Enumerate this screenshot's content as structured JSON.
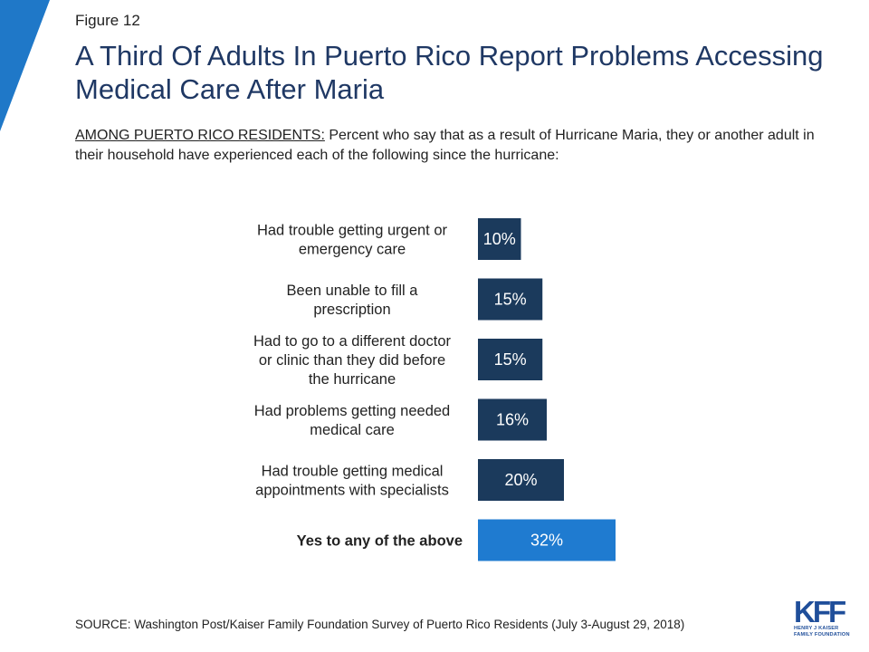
{
  "figure_label": "Figure 12",
  "title": "A Third Of Adults In Puerto Rico Report Problems Accessing Medical Care After Maria",
  "subtitle_lead": "AMONG PUERTO RICO RESIDENTS:",
  "subtitle_rest": " Percent who say that as a result of Hurricane Maria, they or another adult in their household have experienced each of the following since the hurricane:",
  "colors": {
    "accent": "#1f78c8",
    "bar": "#1b3a5c",
    "highlight": "#1f7bd0",
    "title": "#1f3864"
  },
  "chart_data": {
    "type": "bar",
    "orientation": "horizontal",
    "categories": [
      [
        "Had trouble getting urgent or",
        "emergency care"
      ],
      [
        "Been unable to fill a",
        "prescription"
      ],
      [
        "Had to go to a different doctor",
        "or clinic than they did before",
        "the hurricane"
      ],
      [
        "Had problems getting needed",
        "medical care"
      ],
      [
        "Had trouble getting medical",
        "appointments with specialists"
      ],
      [
        "Yes to any of the above"
      ]
    ],
    "values": [
      10,
      15,
      15,
      16,
      20,
      32
    ],
    "data_labels": [
      "10%",
      "15%",
      "15%",
      "16%",
      "20%",
      "32%"
    ],
    "highlighted_index": 5,
    "grid": false,
    "legend": "none"
  },
  "source": "SOURCE: Washington Post/Kaiser Family Foundation Survey of Puerto Rico Residents (July 3-August 29, 2018)",
  "logo": {
    "word": "KFF",
    "sub_line1": "HENRY J KAISER",
    "sub_line2": "FAMILY FOUNDATION"
  }
}
